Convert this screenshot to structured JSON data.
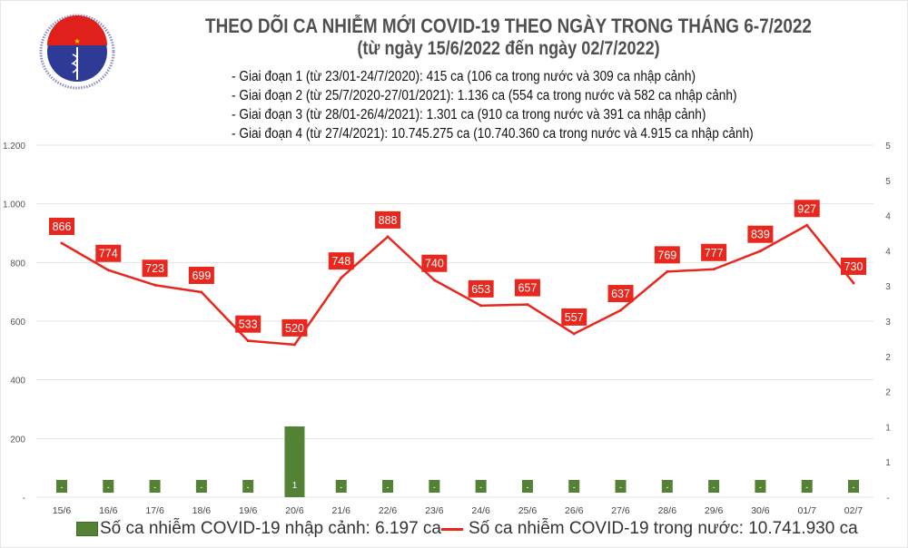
{
  "logo": {
    "top_text": "BỘ Y TẾ",
    "bottom_text": "MINISTRY OF HEALTH"
  },
  "chart_data": {
    "type": "bar+line",
    "title": "THEO DÕI CA NHIỄM MỚI COVID-19 THEO NGÀY TRONG THÁNG 6-7/2022",
    "subtitle": "(từ ngày 15/6/2022 đến ngày 02/7/2022)",
    "notes": [
      "- Giai đoạn 1 (từ 23/01-24/7/2020): 415 ca (106 ca trong nước và 309 ca nhập cảnh)",
      "- Giai đoạn 2 (từ 25/7/2020-27/01/2021): 1.136 ca (554 ca trong nước và 582 ca nhập cảnh)",
      "- Giai đoạn 3 (từ 28/01-26/4/2021): 1.301 ca (910 ca trong nước và 391 ca nhập cảnh)",
      "- Giai đoạn 4 (từ 27/4/2021): 10.745.275 ca (10.740.360 ca trong nước và 4.915 ca nhập cảnh)"
    ],
    "categories": [
      "15/6",
      "16/6",
      "17/6",
      "18/6",
      "19/6",
      "20/6",
      "21/6",
      "22/6",
      "23/6",
      "24/6",
      "25/6",
      "26/6",
      "27/6",
      "28/6",
      "29/6",
      "30/6",
      "01/7",
      "02/7"
    ],
    "y_left": {
      "ylim": [
        0,
        1200
      ],
      "ticks": [
        "-",
        "200",
        "400",
        "600",
        "800",
        "1.000",
        "1.200"
      ]
    },
    "y_right": {
      "ylim": [
        0,
        5
      ],
      "ticks": [
        "-",
        "1",
        "1",
        "2",
        "2",
        "3",
        "3",
        "4",
        "4",
        "5",
        "5"
      ]
    },
    "grid": true,
    "legend_position": "bottom",
    "series": [
      {
        "name": "Số ca nhiễm COVID-19 nhập cảnh: 6.197 ca",
        "type": "bar",
        "axis": "right",
        "color": "#548235",
        "values": [
          0,
          0,
          0,
          0,
          0,
          1,
          0,
          0,
          0,
          0,
          0,
          0,
          0,
          0,
          0,
          0,
          0,
          0
        ],
        "labels": [
          "-",
          "-",
          "-",
          "-",
          "-",
          "1",
          "-",
          "-",
          "-",
          "-",
          "-",
          "-",
          "-",
          "-",
          "-",
          "-",
          "-",
          "-"
        ]
      },
      {
        "name": "Số ca nhiễm COVID-19 trong nước: 10.741.930 ca",
        "type": "line",
        "axis": "left",
        "color": "#e8281e",
        "values": [
          866,
          774,
          723,
          699,
          533,
          520,
          748,
          888,
          740,
          653,
          657,
          557,
          637,
          769,
          777,
          839,
          927,
          730
        ]
      }
    ]
  }
}
